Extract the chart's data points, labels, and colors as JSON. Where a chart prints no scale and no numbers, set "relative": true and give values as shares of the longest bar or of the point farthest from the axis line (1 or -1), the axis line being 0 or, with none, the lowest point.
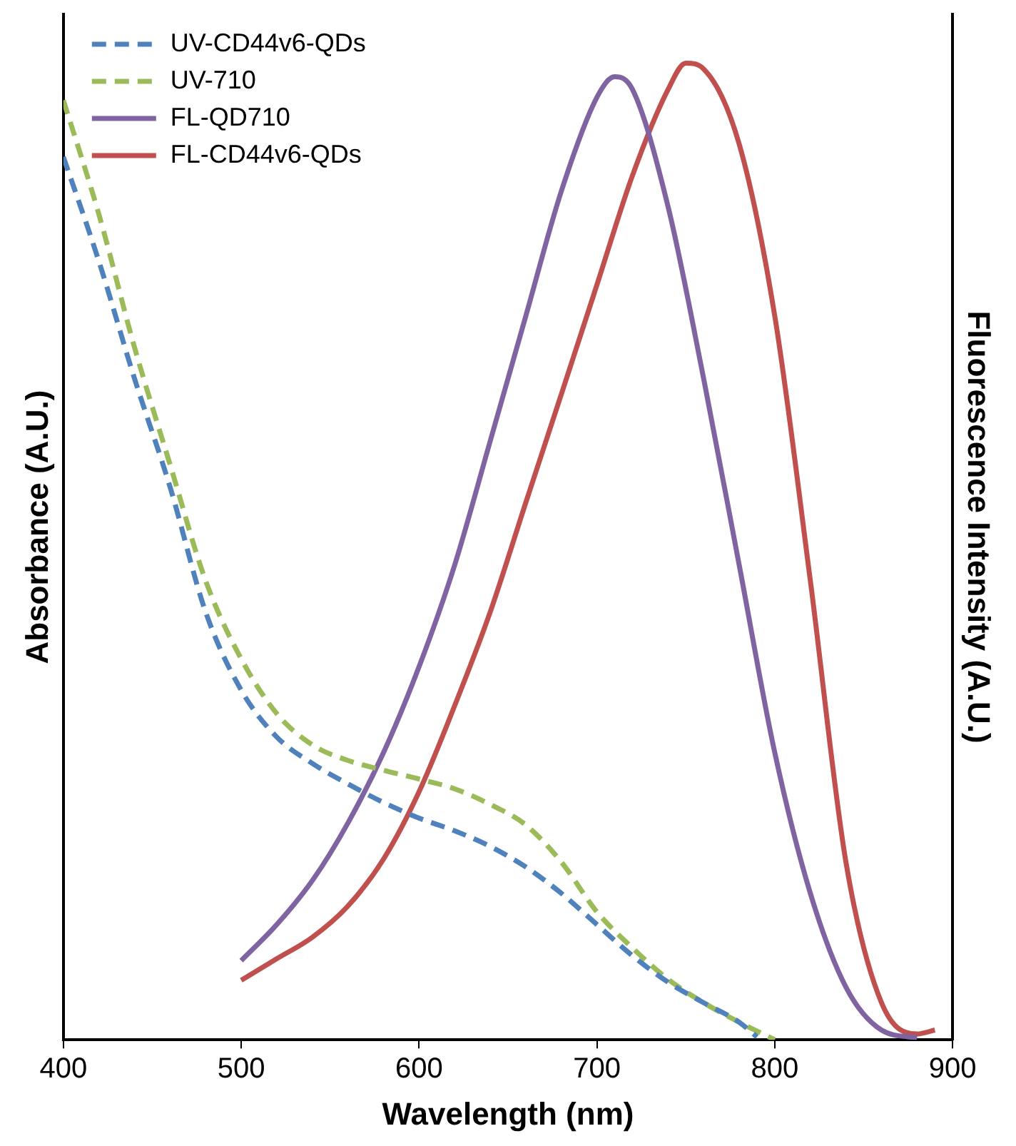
{
  "chart_data": {
    "type": "line",
    "xlabel": "Wavelength (nm)",
    "ylabel": "Absorbance (A.U.)",
    "y2label": "Fluorescence Intensity (A.U.)",
    "relative": true,
    "xlim": [
      400,
      900
    ],
    "xticks": [
      400,
      500,
      600,
      700,
      800,
      900
    ],
    "grid": false,
    "legend": "top left",
    "marker": "none",
    "series": [
      {
        "name": "UV-CD44v6-QDs",
        "color": "#4f81bd",
        "line_style": "dashed",
        "x": [
          400,
          420,
          440,
          460,
          480,
          500,
          520,
          540,
          560,
          580,
          600,
          620,
          640,
          660,
          680,
          700,
          720,
          740,
          760,
          780,
          790
        ],
        "values": [
          0.904,
          0.797,
          0.677,
          0.566,
          0.438,
          0.358,
          0.31,
          0.283,
          0.262,
          0.243,
          0.227,
          0.214,
          0.198,
          0.177,
          0.15,
          0.118,
          0.086,
          0.059,
          0.038,
          0.018,
          0.003
        ]
      },
      {
        "name": "UV-710",
        "color": "#9bbb59",
        "line_style": "dashed",
        "x": [
          400,
          420,
          440,
          460,
          480,
          500,
          520,
          540,
          560,
          580,
          600,
          620,
          640,
          660,
          680,
          700,
          720,
          740,
          760,
          780,
          800
        ],
        "values": [
          0.962,
          0.845,
          0.709,
          0.589,
          0.47,
          0.39,
          0.334,
          0.302,
          0.286,
          0.276,
          0.267,
          0.257,
          0.241,
          0.22,
          0.182,
          0.131,
          0.094,
          0.062,
          0.038,
          0.018,
          0
        ]
      },
      {
        "name": "FL-QD710",
        "color": "#8064a2",
        "line_style": "solid",
        "x": [
          500,
          520,
          540,
          560,
          580,
          600,
          620,
          640,
          660,
          680,
          700,
          710,
          720,
          740,
          760,
          780,
          800,
          820,
          840,
          860,
          880
        ],
        "values": [
          0.081,
          0.118,
          0.163,
          0.222,
          0.294,
          0.382,
          0.486,
          0.613,
          0.741,
          0.869,
          0.965,
          0.986,
          0.973,
          0.853,
          0.677,
          0.486,
          0.294,
          0.15,
          0.054,
          0.01,
          0.002
        ]
      },
      {
        "name": "FL-CD44v6-QDs",
        "color": "#c0504d",
        "line_style": "solid",
        "x": [
          500,
          520,
          540,
          560,
          580,
          600,
          620,
          640,
          660,
          680,
          700,
          720,
          740,
          750,
          760,
          780,
          800,
          820,
          840,
          860,
          880,
          890
        ],
        "values": [
          0.061,
          0.083,
          0.105,
          0.137,
          0.185,
          0.254,
          0.342,
          0.438,
          0.55,
          0.661,
          0.773,
          0.885,
          0.973,
          1,
          0.994,
          0.917,
          0.741,
          0.47,
          0.182,
          0.038,
          0.006,
          0.01
        ]
      }
    ]
  }
}
